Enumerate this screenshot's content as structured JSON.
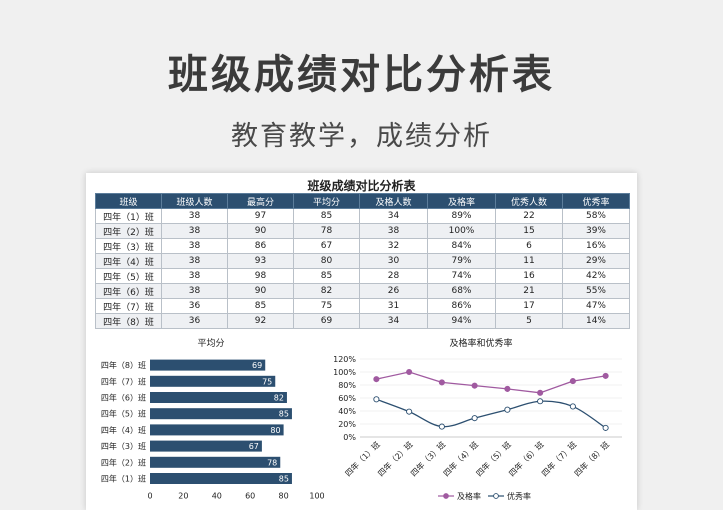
{
  "hero": {
    "title": "班级成绩对比分析表",
    "subtitle": "教育教学，成绩分析"
  },
  "sheet": {
    "title": "班级成绩对比分析表",
    "columns": [
      "班级",
      "班级人数",
      "最高分",
      "平均分",
      "及格人数",
      "及格率",
      "优秀人数",
      "优秀率"
    ],
    "rows": [
      [
        "四年（1）班",
        "38",
        "97",
        "85",
        "34",
        "89%",
        "22",
        "58%"
      ],
      [
        "四年（2）班",
        "38",
        "90",
        "78",
        "38",
        "100%",
        "15",
        "39%"
      ],
      [
        "四年（3）班",
        "38",
        "86",
        "67",
        "32",
        "84%",
        "6",
        "16%"
      ],
      [
        "四年（4）班",
        "38",
        "93",
        "80",
        "30",
        "79%",
        "11",
        "29%"
      ],
      [
        "四年（5）班",
        "38",
        "98",
        "85",
        "28",
        "74%",
        "16",
        "42%"
      ],
      [
        "四年（6）班",
        "38",
        "90",
        "82",
        "26",
        "68%",
        "21",
        "55%"
      ],
      [
        "四年（7）班",
        "36",
        "85",
        "75",
        "31",
        "86%",
        "17",
        "47%"
      ],
      [
        "四年（8）班",
        "36",
        "92",
        "69",
        "34",
        "94%",
        "5",
        "14%"
      ]
    ]
  },
  "colors": {
    "bar": "#2c4f70",
    "pass_line": "#a05aa0",
    "excellent_line": "#2c4f70"
  },
  "chart_data": [
    {
      "type": "bar",
      "orientation": "horizontal",
      "title": "平均分",
      "categories": [
        "四年（8）班",
        "四年（7）班",
        "四年（6）班",
        "四年（5）班",
        "四年（4）班",
        "四年（3）班",
        "四年（2）班",
        "四年（1）班"
      ],
      "values": [
        69,
        75,
        82,
        85,
        80,
        67,
        78,
        85
      ],
      "xlim": [
        0,
        100
      ],
      "xticks": [
        "0",
        "20",
        "40",
        "60",
        "80",
        "100"
      ],
      "data_labels": true
    },
    {
      "type": "line",
      "title": "及格率和优秀率",
      "categories": [
        "四年（1）班",
        "四年（2）班",
        "四年（3）班",
        "四年（4）班",
        "四年（5）班",
        "四年（6）班",
        "四年（7）班",
        "四年（8）班"
      ],
      "series": [
        {
          "name": "及格率",
          "values": [
            89,
            100,
            84,
            79,
            74,
            68,
            86,
            94
          ]
        },
        {
          "name": "优秀率",
          "values": [
            58,
            39,
            16,
            29,
            42,
            55,
            47,
            14
          ]
        }
      ],
      "ylim": [
        0,
        120
      ],
      "yticks": [
        "0%",
        "20%",
        "40%",
        "60%",
        "80%",
        "100%",
        "120%"
      ],
      "legend": "bottom"
    }
  ]
}
